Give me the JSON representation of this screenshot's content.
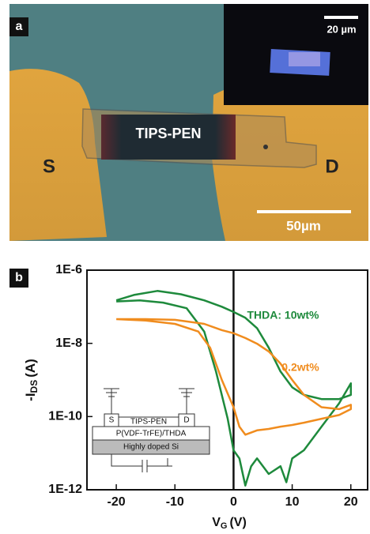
{
  "panel_a": {
    "label": "a",
    "inset_scale_bar": "20 µm",
    "channel_label": "TIPS-PEN",
    "source_label": "S",
    "drain_label": "D",
    "scale_bar": "50µm"
  },
  "chart_data": {
    "type": "line",
    "panel_label": "b",
    "y_label": {
      "main": "-I",
      "sub": "DS",
      "unit": "(A)"
    },
    "x_label": {
      "main": "V",
      "sub": "G",
      "unit": "(V)"
    },
    "xlim": [
      -25,
      23
    ],
    "xticks": [
      -20,
      -10,
      0,
      10,
      20
    ],
    "ylim": [
      1e-12,
      1e-06
    ],
    "log_scale_y": true,
    "yticks": [
      {
        "value": 1e-12,
        "label": "1E-12"
      },
      {
        "value": 1e-10,
        "label": "1E-10"
      },
      {
        "value": 1e-08,
        "label": "1E-8"
      },
      {
        "value": 1e-06,
        "label": "1E-6"
      }
    ],
    "zero_line": true,
    "series": [
      {
        "name": "THDA: 10wt%",
        "color": "#1e8a3c",
        "x": [
          -20,
          -17,
          -13,
          -9,
          -5,
          -2,
          0,
          2,
          4,
          6,
          8,
          10,
          12,
          15,
          18,
          20,
          20,
          18,
          15,
          12,
          10,
          9,
          8,
          6,
          4,
          3,
          2,
          1,
          0,
          -1,
          -3,
          -5,
          -8,
          -12,
          -16,
          -20
        ],
        "values": [
          1.5e-07,
          2.1e-07,
          2.7e-07,
          2.2e-07,
          1.5e-07,
          1e-07,
          7.2e-08,
          5e-08,
          2.6e-08,
          7.6e-09,
          1.7e-09,
          6.3e-10,
          3.9e-10,
          3e-10,
          3e-10,
          3.9e-10,
          8.1e-10,
          2.3e-10,
          5.3e-11,
          1.2e-11,
          7.2e-12,
          1.6e-12,
          4.4e-12,
          2.7e-12,
          7.2e-12,
          4.4e-12,
          1.3e-12,
          7.2e-12,
          1.2e-11,
          8.7e-11,
          1.7e-09,
          2.1e-08,
          9.1e-08,
          1.3e-07,
          1.5e-07,
          1.4e-07
        ]
      },
      {
        "name": "0.2wt%",
        "color": "#f08c1e",
        "x": [
          -20,
          -15,
          -10,
          -5,
          -2,
          0,
          2,
          4,
          6,
          8,
          10,
          12,
          15,
          18,
          20,
          20,
          18,
          15,
          12,
          10,
          8,
          6,
          4,
          2,
          1,
          0,
          -2,
          -4,
          -6,
          -10,
          -15,
          -20
        ],
        "values": [
          4.6e-08,
          4.6e-08,
          4.4e-08,
          3.4e-08,
          2.3e-08,
          1.9e-08,
          1.4e-08,
          9.8e-09,
          6e-09,
          2.8e-09,
          1e-09,
          3.9e-10,
          1.8e-10,
          1.6e-10,
          2.1e-10,
          1.6e-10,
          1.1e-10,
          8.7e-11,
          6.8e-11,
          5.9e-11,
          5.3e-11,
          4.6e-11,
          4.2e-11,
          3.2e-11,
          5.3e-11,
          1.8e-10,
          1e-09,
          7.6e-09,
          2.1e-08,
          3.4e-08,
          4.2e-08,
          4.6e-08
        ]
      }
    ],
    "inset": {
      "source": "S",
      "channel": "TIPS-PEN",
      "drain": "D",
      "dielectric": "P(VDF-TrFE)/THDA",
      "gate": "Highly doped Si"
    }
  }
}
